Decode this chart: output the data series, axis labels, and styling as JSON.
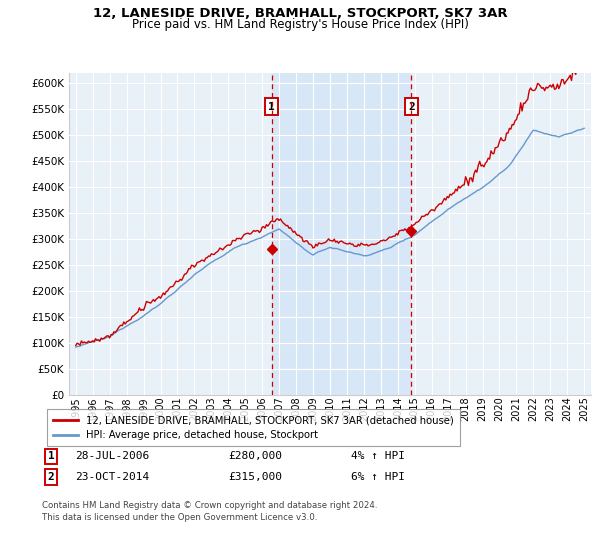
{
  "title_line1": "12, LANESIDE DRIVE, BRAMHALL, STOCKPORT, SK7 3AR",
  "title_line2": "Price paid vs. HM Land Registry's House Price Index (HPI)",
  "ylim": [
    0,
    620000
  ],
  "yticks": [
    0,
    50000,
    100000,
    150000,
    200000,
    250000,
    300000,
    350000,
    400000,
    450000,
    500000,
    550000,
    600000
  ],
  "sale1_year": 2006.57,
  "sale1_price": 280000,
  "sale2_year": 2014.8,
  "sale2_price": 315000,
  "hpi_color": "#6699cc",
  "price_color": "#cc0000",
  "vline_color": "#cc0000",
  "shade_color": "#d0e4f7",
  "bg_plot_color": "#e8f0f8",
  "grid_color": "#ffffff",
  "legend_label_price": "12, LANESIDE DRIVE, BRAMHALL, STOCKPORT, SK7 3AR (detached house)",
  "legend_label_hpi": "HPI: Average price, detached house, Stockport",
  "table_row1": [
    "1",
    "28-JUL-2006",
    "£280,000",
    "4% ↑ HPI"
  ],
  "table_row2": [
    "2",
    "23-OCT-2014",
    "£315,000",
    "6% ↑ HPI"
  ],
  "footer_text": "Contains HM Land Registry data © Crown copyright and database right 2024.\nThis data is licensed under the Open Government Licence v3.0.",
  "xtick_years": [
    1995,
    1996,
    1997,
    1998,
    1999,
    2000,
    2001,
    2002,
    2003,
    2004,
    2005,
    2006,
    2007,
    2008,
    2009,
    2010,
    2011,
    2012,
    2013,
    2014,
    2015,
    2016,
    2017,
    2018,
    2019,
    2020,
    2021,
    2022,
    2023,
    2024,
    2025
  ]
}
